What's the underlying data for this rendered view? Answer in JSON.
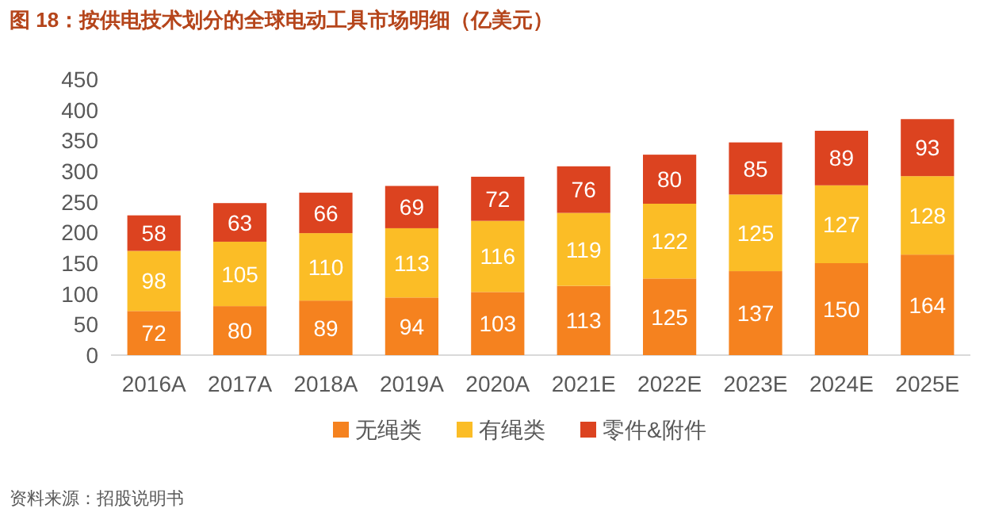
{
  "chart_data": {
    "type": "bar",
    "title": "图 18：按供电技术划分的全球电动工具市场明细（亿美元）",
    "categories": [
      "2016A",
      "2017A",
      "2018A",
      "2019A",
      "2020A",
      "2021E",
      "2022E",
      "2023E",
      "2024E",
      "2025E"
    ],
    "stacked": true,
    "series": [
      {
        "name": "无绳类",
        "color": "#f5821f",
        "values": [
          72,
          80,
          89,
          94,
          103,
          113,
          125,
          137,
          150,
          164
        ]
      },
      {
        "name": "有绳类",
        "color": "#fbbd26",
        "values": [
          98,
          105,
          110,
          113,
          116,
          119,
          122,
          125,
          127,
          128
        ]
      },
      {
        "name": "零件&附件",
        "color": "#dc4320",
        "values": [
          58,
          63,
          66,
          69,
          72,
          76,
          80,
          85,
          89,
          93
        ]
      }
    ],
    "ylim": [
      0,
      450
    ],
    "yticks": [
      0,
      50,
      100,
      150,
      200,
      250,
      300,
      350,
      400,
      450
    ],
    "data_labels": true,
    "grid": false,
    "legend": "bottom",
    "annotations": [
      "资料来源：招股说明书"
    ]
  }
}
